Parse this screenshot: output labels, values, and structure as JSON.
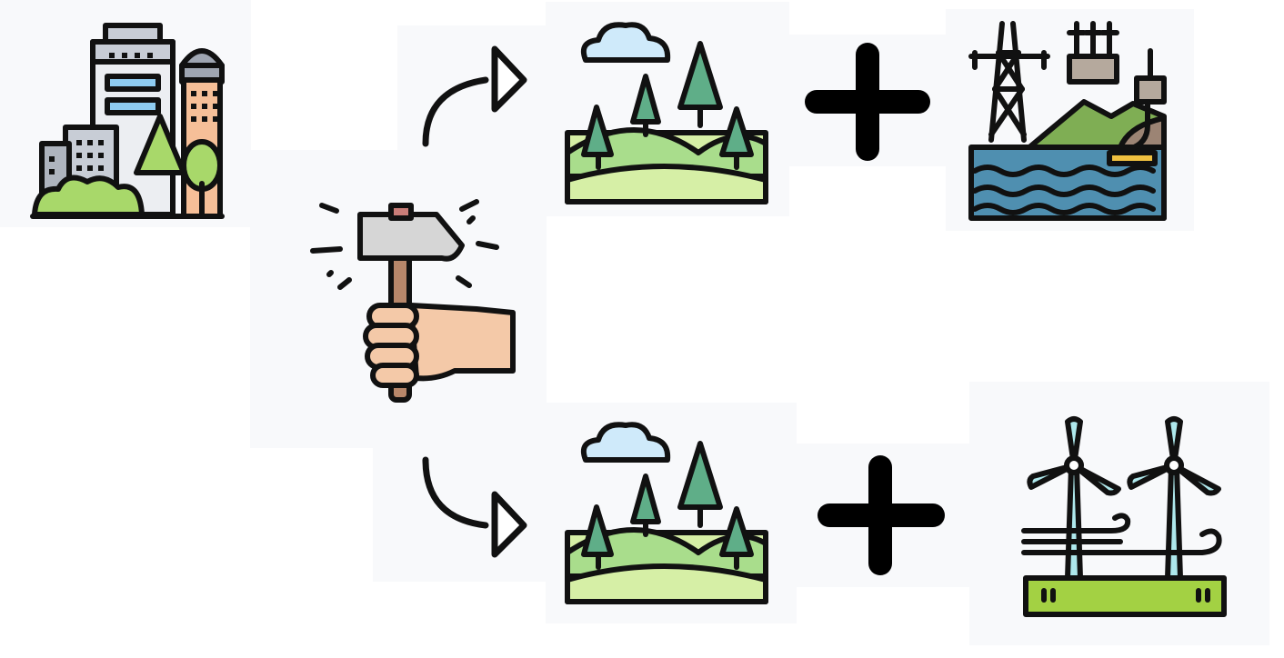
{
  "diagram": {
    "colors": {
      "outline": "#111111",
      "grass_light": "#d6efa6",
      "grass_mid": "#a9dd8c",
      "tree": "#5fae88",
      "cloud": "#cfeafa",
      "building_gray": "#c8cdd6",
      "building_peach": "#f6bf98",
      "water": "#4f8fb0",
      "skin": "#f4c9a8",
      "turbine": "#aee8ec",
      "ground_green": "#a3d143"
    },
    "nodes": [
      {
        "id": "city",
        "icon": "city-buildings-trees-icon"
      },
      {
        "id": "demolition",
        "icon": "hand-hammer-icon"
      },
      {
        "id": "nature-top",
        "icon": "landscape-hills-trees-icon"
      },
      {
        "id": "hydro",
        "icon": "hydro-power-dam-icon"
      },
      {
        "id": "nature-bottom",
        "icon": "landscape-hills-trees-icon"
      },
      {
        "id": "wind",
        "icon": "wind-turbines-icon"
      }
    ],
    "connectors": [
      {
        "from": "demolition",
        "to": "nature-top",
        "icon": "curved-arrow-up-icon"
      },
      {
        "from": "demolition",
        "to": "nature-bottom",
        "icon": "curved-arrow-down-icon"
      }
    ],
    "operators": [
      {
        "between": [
          "nature-top",
          "hydro"
        ],
        "icon": "plus-icon"
      },
      {
        "between": [
          "nature-bottom",
          "wind"
        ],
        "icon": "plus-icon"
      }
    ]
  }
}
